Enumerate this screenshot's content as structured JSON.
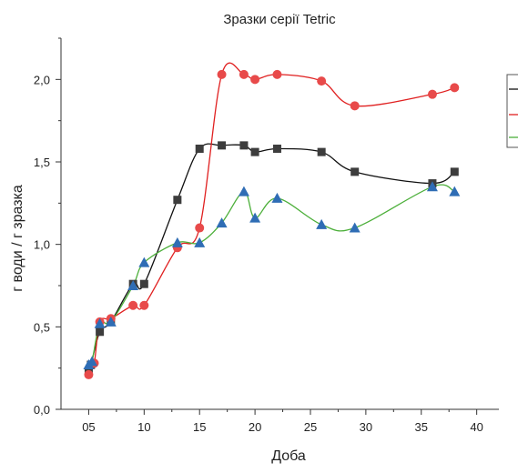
{
  "chart_data": {
    "type": "scatter",
    "title": "Зразки серії Tetric",
    "xlabel": "Доба",
    "ylabel": "г води / г зразка",
    "xlim": [
      2.5,
      42
    ],
    "ylim": [
      0,
      2.25
    ],
    "x_ticks": [
      5,
      10,
      15,
      20,
      25,
      30,
      35,
      40
    ],
    "x_tick_labels": [
      "05",
      "10",
      "15",
      "20",
      "25",
      "30",
      "35",
      "40"
    ],
    "y_ticks": [
      0,
      0.5,
      1.0,
      1.5,
      2.0
    ],
    "y_tick_labels": [
      "0,0",
      "0,5",
      "1,0",
      "1,5",
      "2,0"
    ],
    "grid": false,
    "legend_position": "right",
    "series": [
      {
        "marker": "square",
        "color": "#3d3d3d",
        "line_color": "#111111",
        "x": [
          5,
          5.2,
          6,
          7,
          9,
          10,
          13,
          15,
          17,
          19,
          20,
          22,
          26,
          29,
          36,
          38
        ],
        "y": [
          0.23,
          0.27,
          0.47,
          0.53,
          0.76,
          0.76,
          1.27,
          1.58,
          1.6,
          1.6,
          1.56,
          1.58,
          1.56,
          1.44,
          1.37,
          1.44
        ]
      },
      {
        "marker": "circle",
        "color": "#e84a4a",
        "line_color": "#e02020",
        "x": [
          5,
          5.5,
          6,
          7,
          9,
          10,
          13,
          15,
          17,
          19,
          20,
          22,
          26,
          29,
          36,
          38
        ],
        "y": [
          0.21,
          0.28,
          0.53,
          0.55,
          0.63,
          0.63,
          0.98,
          1.1,
          2.03,
          2.03,
          2.0,
          2.03,
          1.99,
          1.84,
          1.91,
          1.95
        ]
      },
      {
        "marker": "triangle",
        "color": "#2f6db5",
        "line_color": "#4caf3a",
        "x": [
          5,
          5.3,
          6,
          7,
          9,
          10,
          13,
          15,
          17,
          19,
          20,
          22,
          26,
          29,
          36,
          38
        ],
        "y": [
          0.27,
          0.29,
          0.52,
          0.53,
          0.75,
          0.89,
          1.01,
          1.01,
          1.13,
          1.32,
          1.16,
          1.28,
          1.12,
          1.1,
          1.35,
          1.32
        ]
      }
    ]
  }
}
